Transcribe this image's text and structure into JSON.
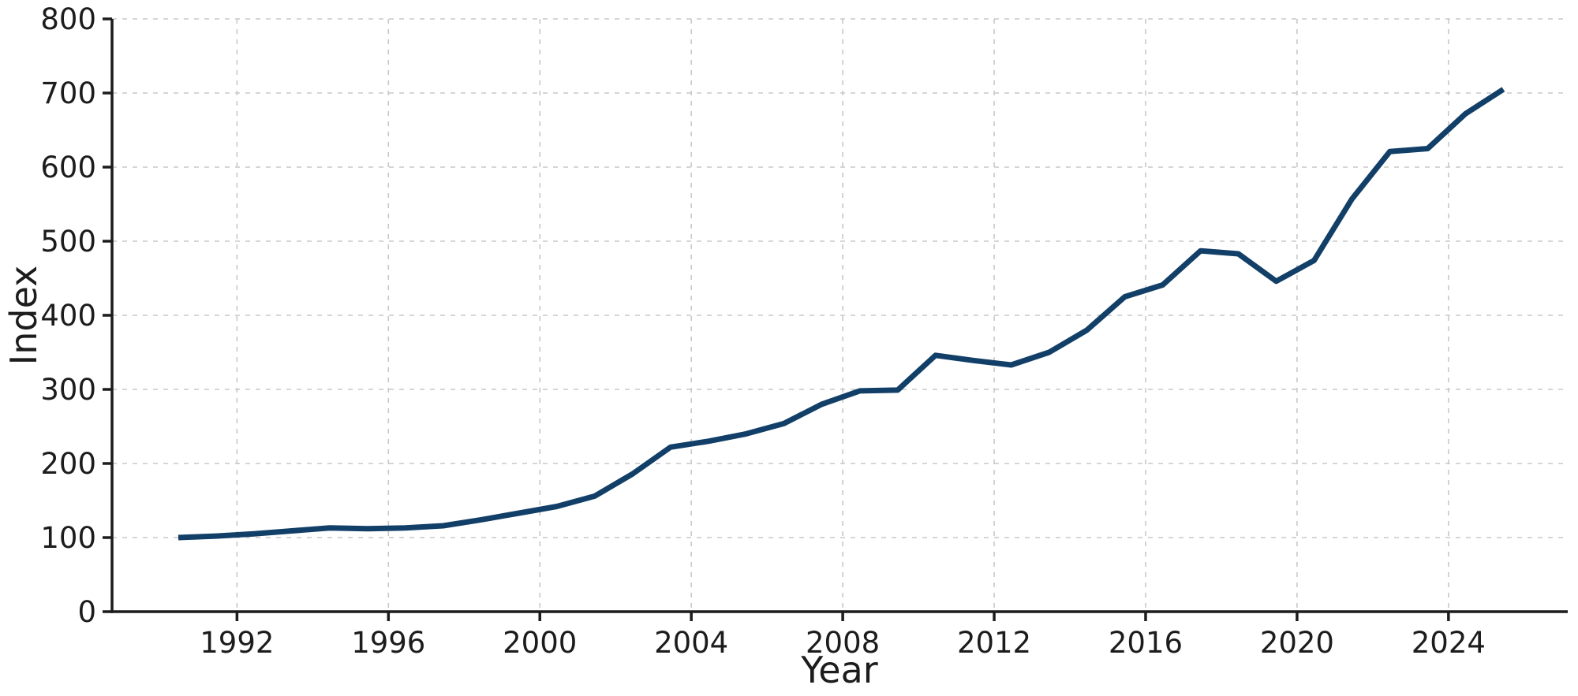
{
  "chart_data": {
    "type": "line",
    "title": "",
    "xlabel": "Year",
    "ylabel": "Index",
    "x": [
      1990,
      1991,
      1992,
      1993,
      1994,
      1995,
      1996,
      1997,
      1998,
      1999,
      2000,
      2001,
      2002,
      2003,
      2004,
      2005,
      2006,
      2007,
      2008,
      2009,
      2010,
      2011,
      2012,
      2013,
      2014,
      2015,
      2016,
      2017,
      2018,
      2019,
      2020,
      2021,
      2022,
      2023,
      2024,
      2025
    ],
    "values": [
      100,
      102,
      105,
      109,
      113,
      112,
      113,
      116,
      124,
      133,
      142,
      156,
      186,
      222,
      230,
      240,
      254,
      280,
      298,
      299,
      346,
      339,
      333,
      350,
      380,
      425,
      441,
      487,
      483,
      446,
      474,
      557,
      621,
      625,
      672,
      705
    ],
    "xticks": [
      1992,
      1996,
      2000,
      2004,
      2008,
      2012,
      2016,
      2020,
      2024
    ],
    "yticks": [
      0,
      100,
      200,
      300,
      400,
      500,
      600,
      700,
      800
    ],
    "xlim": [
      1988.7,
      2027.15
    ],
    "ylim": [
      0,
      800
    ],
    "x_offset_years": 0.45,
    "grid": true,
    "grid_style": "dashed",
    "legend_position": "none",
    "line_color": "#123f68",
    "grid_color": "#c8c8c8",
    "axis_color": "#1c1c1c",
    "background_color": "#ffffff",
    "line_width": 7
  }
}
